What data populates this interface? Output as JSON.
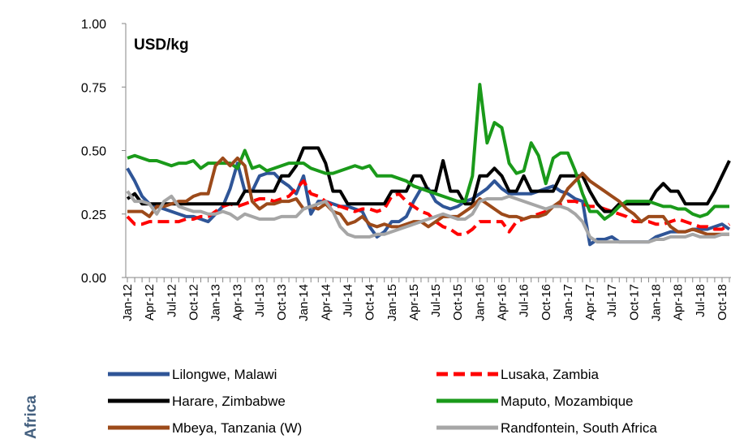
{
  "chart_data": {
    "type": "line",
    "annotation": "USD/kg",
    "side_label": "Africa",
    "categories": [
      "Jan-12",
      null,
      null,
      "Apr-12",
      null,
      null,
      "Jul-12",
      null,
      null,
      "Oct-12",
      null,
      null,
      "Jan-13",
      null,
      null,
      "Apr-13",
      null,
      null,
      "Jul-13",
      null,
      null,
      "Oct-13",
      null,
      null,
      "Jan-14",
      null,
      null,
      "Apr-14",
      null,
      null,
      "Jul-14",
      null,
      null,
      "Oct-14",
      null,
      null,
      "Jan-15",
      null,
      null,
      "Apr-15",
      null,
      null,
      "Jul-15",
      null,
      null,
      "Oct-15",
      null,
      null,
      "Jan-16",
      null,
      null,
      "Apr-16",
      null,
      null,
      "Jul-16",
      null,
      null,
      "Oct-16",
      null,
      null,
      "Jan-17",
      null,
      null,
      "Apr-17",
      null,
      null,
      "Jul-17",
      null,
      null,
      "Oct-17",
      null,
      null,
      "Jan-18",
      null,
      null,
      "Apr-18",
      null,
      null,
      "Jul-18",
      null,
      null,
      "Oct-18",
      null
    ],
    "ylim": [
      0,
      1
    ],
    "yticks": [
      {
        "value": 0,
        "label": "0.00"
      },
      {
        "value": 0.25,
        "label": "0.25"
      },
      {
        "value": 0.5,
        "label": "0.50"
      },
      {
        "value": 0.75,
        "label": "0.75"
      },
      {
        "value": 1,
        "label": "1.00"
      }
    ],
    "grid": false,
    "legend": "bottom",
    "series": [
      {
        "name": "Lilongwe, Malawi",
        "color": "#2f5597",
        "dash": false,
        "values": [
          0.43,
          0.38,
          0.32,
          0.29,
          0.28,
          0.27,
          0.26,
          0.25,
          0.24,
          0.24,
          0.23,
          0.22,
          0.25,
          0.28,
          0.35,
          0.45,
          0.34,
          0.34,
          0.4,
          0.41,
          0.41,
          0.38,
          0.36,
          0.33,
          0.4,
          0.25,
          0.3,
          0.3,
          0.29,
          0.28,
          0.28,
          0.27,
          0.26,
          0.2,
          0.16,
          0.18,
          0.22,
          0.22,
          0.24,
          0.3,
          0.35,
          0.35,
          0.3,
          0.28,
          0.27,
          0.28,
          0.3,
          0.31,
          0.33,
          0.35,
          0.38,
          0.35,
          0.33,
          0.33,
          0.33,
          0.33,
          0.34,
          0.35,
          0.36,
          0.34,
          0.33,
          0.31,
          0.3,
          0.13,
          0.15,
          0.15,
          0.16,
          0.14,
          0.14,
          0.14,
          0.14,
          0.14,
          0.16,
          0.17,
          0.18,
          0.18,
          0.18,
          0.19,
          0.19,
          0.19,
          0.2,
          0.21,
          0.19
        ]
      },
      {
        "name": "Lusaka, Zambia",
        "color": "#ff0000",
        "dash": true,
        "values": [
          0.24,
          0.21,
          0.21,
          0.22,
          0.22,
          0.22,
          0.22,
          0.22,
          0.23,
          0.23,
          0.24,
          0.24,
          0.26,
          0.28,
          0.29,
          0.28,
          0.29,
          0.3,
          0.31,
          0.31,
          0.3,
          0.31,
          0.32,
          0.35,
          0.38,
          0.33,
          0.32,
          0.3,
          0.28,
          0.28,
          0.27,
          0.26,
          0.27,
          0.27,
          0.26,
          0.27,
          0.32,
          0.33,
          0.3,
          0.28,
          0.26,
          0.25,
          0.22,
          0.2,
          0.19,
          0.17,
          0.17,
          0.19,
          0.22,
          0.22,
          0.22,
          0.22,
          0.18,
          0.22,
          0.23,
          0.24,
          0.25,
          0.26,
          0.28,
          0.29,
          0.3,
          0.3,
          0.29,
          0.28,
          0.28,
          0.27,
          0.26,
          0.25,
          0.24,
          0.22,
          0.22,
          0.22,
          0.21,
          0.21,
          0.22,
          0.23,
          0.22,
          0.21,
          0.2,
          0.2,
          0.19,
          0.19,
          0.21
        ]
      },
      {
        "name": "Harare, Zimbabwe",
        "color": "#000000",
        "dash": false,
        "values": [
          0.31,
          0.33,
          0.29,
          0.29,
          0.29,
          0.29,
          0.29,
          0.29,
          0.29,
          0.29,
          0.29,
          0.29,
          0.29,
          0.29,
          0.29,
          0.29,
          0.34,
          0.34,
          0.34,
          0.34,
          0.34,
          0.4,
          0.4,
          0.44,
          0.51,
          0.51,
          0.51,
          0.45,
          0.34,
          0.34,
          0.29,
          0.29,
          0.29,
          0.29,
          0.29,
          0.29,
          0.34,
          0.34,
          0.34,
          0.4,
          0.4,
          0.34,
          0.34,
          0.46,
          0.34,
          0.34,
          0.29,
          0.29,
          0.4,
          0.4,
          0.43,
          0.4,
          0.34,
          0.34,
          0.4,
          0.34,
          0.34,
          0.34,
          0.34,
          0.4,
          0.4,
          0.4,
          0.4,
          0.34,
          0.29,
          0.26,
          0.26,
          0.29,
          0.29,
          0.29,
          0.29,
          0.29,
          0.34,
          0.37,
          0.34,
          0.34,
          0.29,
          0.29,
          0.29,
          0.29,
          0.34,
          0.4,
          0.46
        ]
      },
      {
        "name": "Maputo, Mozambique",
        "color": "#1a9a1a",
        "dash": false,
        "values": [
          0.47,
          0.48,
          0.47,
          0.46,
          0.46,
          0.45,
          0.44,
          0.45,
          0.45,
          0.46,
          0.43,
          0.45,
          0.45,
          0.45,
          0.45,
          0.43,
          0.5,
          0.43,
          0.44,
          0.42,
          0.43,
          0.44,
          0.45,
          0.45,
          0.45,
          0.43,
          0.42,
          0.41,
          0.41,
          0.42,
          0.43,
          0.44,
          0.43,
          0.44,
          0.4,
          0.4,
          0.4,
          0.39,
          0.38,
          0.36,
          0.35,
          0.34,
          0.33,
          0.32,
          0.31,
          0.3,
          0.3,
          0.4,
          0.76,
          0.53,
          0.61,
          0.59,
          0.45,
          0.41,
          0.42,
          0.53,
          0.48,
          0.37,
          0.47,
          0.49,
          0.49,
          0.42,
          0.33,
          0.26,
          0.26,
          0.23,
          0.25,
          0.28,
          0.3,
          0.3,
          0.3,
          0.3,
          0.29,
          0.28,
          0.28,
          0.27,
          0.27,
          0.25,
          0.24,
          0.25,
          0.28,
          0.28,
          0.28
        ]
      },
      {
        "name": "Mbeya, Tanzania  (W)",
        "color": "#9c4a1a",
        "dash": false,
        "values": [
          0.26,
          0.26,
          0.26,
          0.24,
          0.28,
          0.28,
          0.29,
          0.3,
          0.3,
          0.32,
          0.33,
          0.33,
          0.44,
          0.47,
          0.44,
          0.47,
          0.44,
          0.3,
          0.27,
          0.29,
          0.29,
          0.3,
          0.3,
          0.31,
          0.27,
          0.28,
          0.27,
          0.29,
          0.26,
          0.25,
          0.21,
          0.22,
          0.24,
          0.21,
          0.2,
          0.21,
          0.2,
          0.2,
          0.21,
          0.22,
          0.22,
          0.2,
          0.22,
          0.24,
          0.24,
          0.24,
          0.26,
          0.28,
          0.31,
          0.29,
          0.27,
          0.25,
          0.24,
          0.24,
          0.23,
          0.24,
          0.24,
          0.25,
          0.28,
          0.3,
          0.35,
          0.38,
          0.41,
          0.38,
          0.36,
          0.34,
          0.32,
          0.3,
          0.27,
          0.25,
          0.22,
          0.24,
          0.24,
          0.24,
          0.2,
          0.18,
          0.18,
          0.19,
          0.18,
          0.17,
          0.17,
          0.17,
          0.17
        ]
      },
      {
        "name": "Randfontein, South Africa",
        "color": "#a6a6a6",
        "dash": false,
        "values": [
          0.34,
          0.3,
          0.3,
          0.29,
          0.25,
          0.3,
          0.32,
          0.28,
          0.27,
          0.26,
          0.26,
          0.25,
          0.25,
          0.26,
          0.25,
          0.23,
          0.25,
          0.24,
          0.23,
          0.23,
          0.23,
          0.24,
          0.24,
          0.24,
          0.27,
          0.28,
          0.29,
          0.3,
          0.26,
          0.2,
          0.17,
          0.16,
          0.16,
          0.16,
          0.17,
          0.17,
          0.18,
          0.19,
          0.2,
          0.21,
          0.22,
          0.23,
          0.24,
          0.25,
          0.24,
          0.23,
          0.23,
          0.25,
          0.3,
          0.31,
          0.31,
          0.31,
          0.32,
          0.31,
          0.3,
          0.29,
          0.28,
          0.27,
          0.28,
          0.28,
          0.27,
          0.25,
          0.22,
          0.16,
          0.14,
          0.14,
          0.14,
          0.14,
          0.14,
          0.14,
          0.14,
          0.14,
          0.15,
          0.15,
          0.16,
          0.16,
          0.16,
          0.17,
          0.16,
          0.16,
          0.16,
          0.17,
          0.17
        ]
      }
    ]
  }
}
